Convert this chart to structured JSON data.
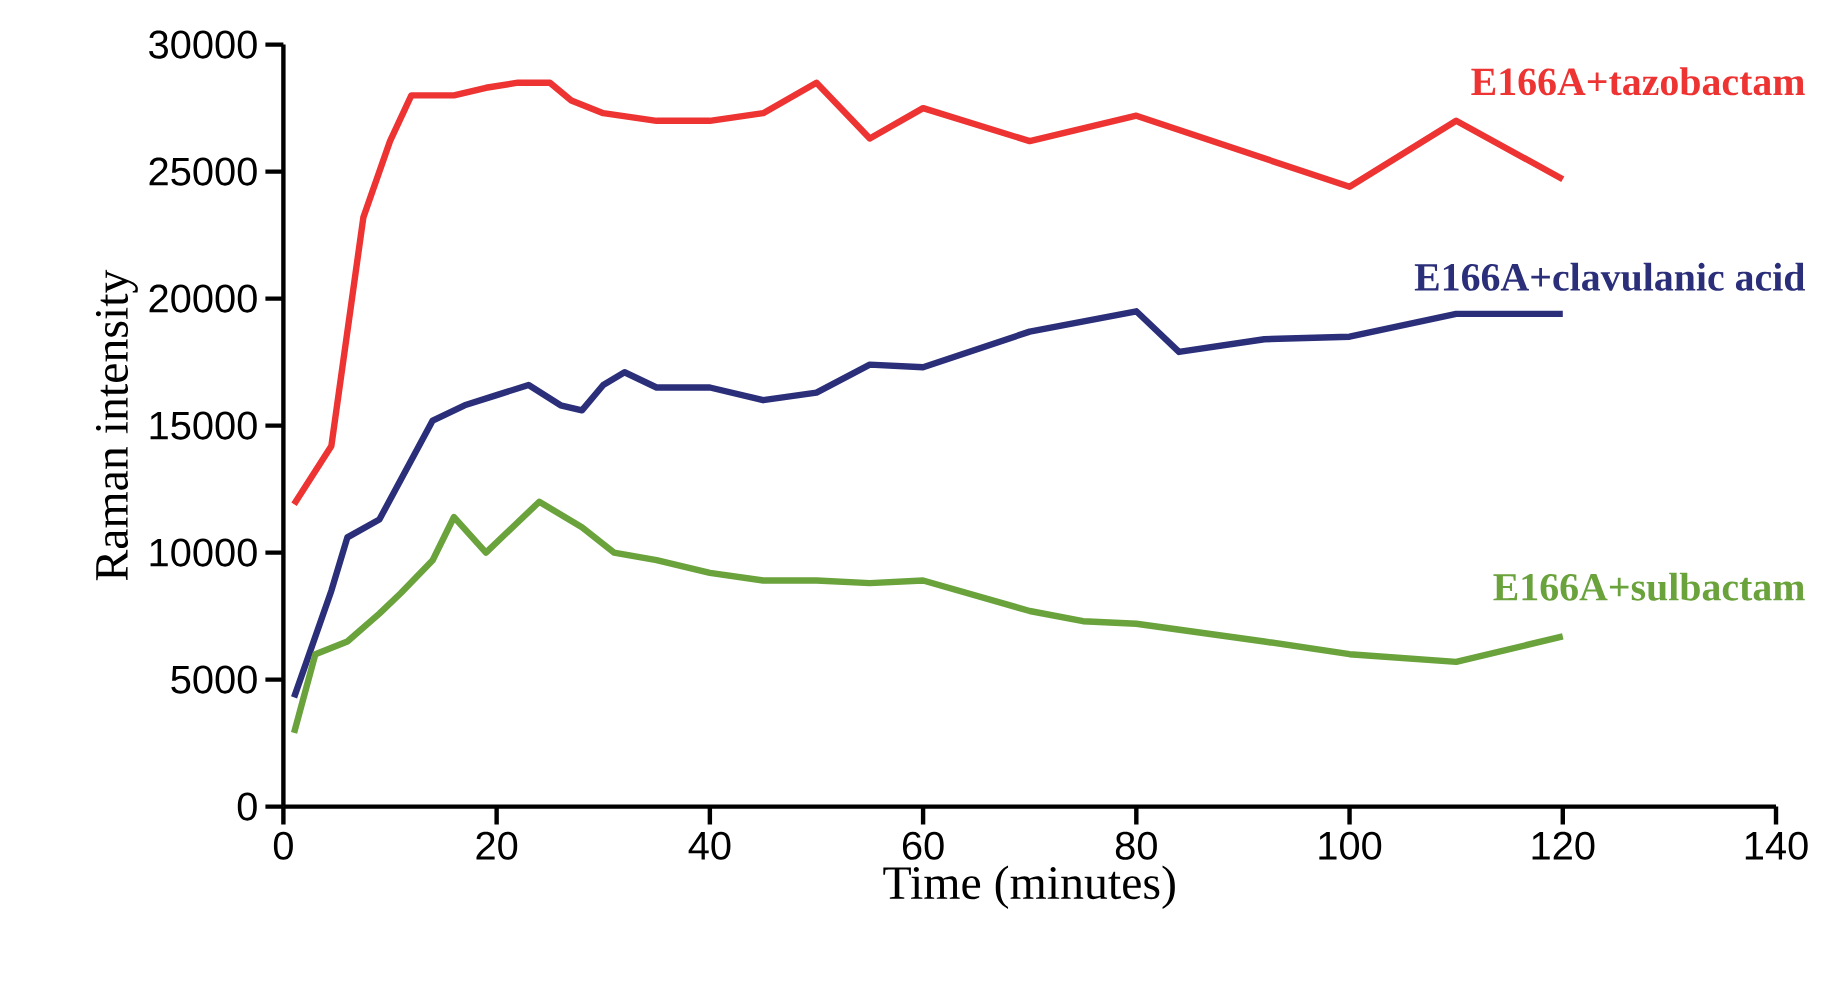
{
  "chart_data": {
    "type": "line",
    "xlabel": "Time (minutes)",
    "ylabel": "Raman intensity",
    "xlim": [
      0,
      140
    ],
    "xticks": [
      0,
      20,
      40,
      60,
      80,
      100,
      120,
      140
    ],
    "ylim": [
      0,
      30000
    ],
    "yticks": [
      0,
      5000,
      10000,
      15000,
      20000,
      25000,
      30000
    ],
    "series": [
      {
        "name": "E166A+tazobactam",
        "color": "#ee3333",
        "x": [
          1,
          4.5,
          7.5,
          10,
          12,
          16,
          19,
          22,
          25,
          27,
          30,
          35,
          40,
          45,
          50,
          55,
          60,
          70,
          80,
          100,
          110,
          120
        ],
        "values": [
          11900,
          14200,
          23200,
          26200,
          28000,
          28000,
          28300,
          28500,
          28500,
          27800,
          27300,
          27000,
          27000,
          27300,
          28500,
          26300,
          27500,
          26200,
          27200,
          24400,
          27000,
          24700
        ]
      },
      {
        "name": "E166A+clavulanic acid",
        "color": "#2b2f7a",
        "x": [
          1,
          4.5,
          6,
          9,
          14,
          17,
          20,
          23,
          26,
          28,
          30,
          32,
          35,
          40,
          45,
          50,
          55,
          60,
          70,
          80,
          84,
          92,
          100,
          110,
          120
        ],
        "values": [
          4300,
          8500,
          10600,
          11300,
          15200,
          15800,
          16200,
          16600,
          15800,
          15600,
          16600,
          17100,
          16500,
          16500,
          16000,
          16300,
          17400,
          17300,
          18700,
          19500,
          17900,
          18400,
          18500,
          19400,
          19400
        ]
      },
      {
        "name": "E166A+sulbactam",
        "color": "#6aa23c",
        "x": [
          1,
          3,
          6,
          9,
          11,
          14,
          16,
          19,
          24,
          28,
          31,
          35,
          40,
          45,
          50,
          55,
          60,
          70,
          75,
          80,
          92,
          100,
          110,
          120
        ],
        "values": [
          2900,
          6000,
          6500,
          7600,
          8400,
          9700,
          11400,
          10000,
          12000,
          11000,
          10000,
          9700,
          9200,
          8900,
          8900,
          8800,
          8900,
          7700,
          7300,
          7200,
          6500,
          6000,
          5700,
          6700
        ]
      }
    ]
  }
}
